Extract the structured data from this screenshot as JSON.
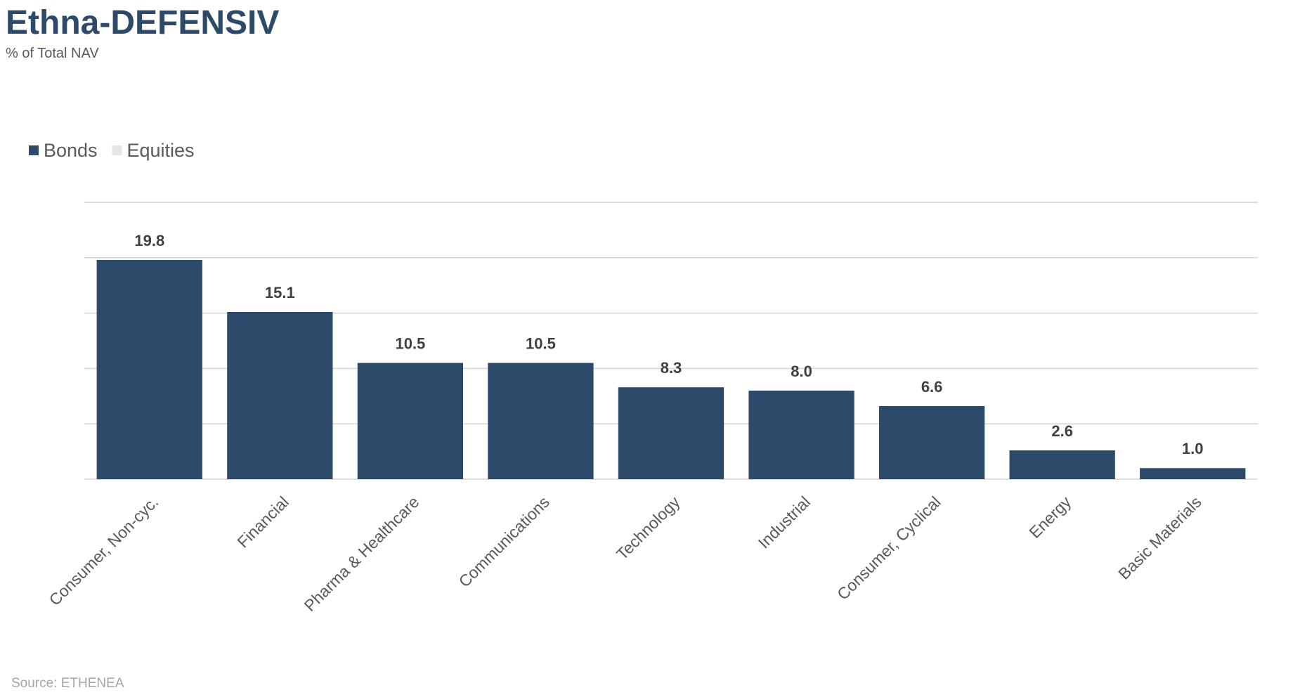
{
  "header": {
    "title": "Ethna-DEFENSIV",
    "subtitle": "% of Total NAV"
  },
  "footer": {
    "source": "Source: ETHENEA"
  },
  "colors": {
    "title": "#2e4a6b",
    "bonds": "#2e4a6b",
    "equities": "#e6e6e6",
    "grid": "#d4d4d4",
    "axis_text": "#595959",
    "value_label": "#404040",
    "source": "#a6a6a6"
  },
  "chart_data": {
    "type": "bar",
    "stacked": true,
    "categories": [
      "Consumer, Non-cyc.",
      "Financial",
      "Pharma & Healthcare",
      "Communications",
      "Technology",
      "Industrial",
      "Consumer, Cyclical",
      "Energy",
      "Basic Materials"
    ],
    "series": [
      {
        "name": "Bonds",
        "values": [
          19.8,
          15.1,
          10.5,
          10.5,
          8.3,
          8.0,
          6.6,
          2.6,
          1.0
        ]
      },
      {
        "name": "Equities",
        "values": [
          0,
          0,
          0,
          0,
          0,
          0,
          0,
          0,
          0
        ]
      }
    ],
    "data_labels": [
      "19.8",
      "15.1",
      "10.5",
      "10.5",
      "8.3",
      "8.0",
      "6.6",
      "2.6",
      "1.0"
    ],
    "ylim": [
      0,
      25
    ],
    "ytick_step": 5,
    "y_axis_labels_shown": false,
    "grid": true,
    "legend_position": "top-left"
  }
}
